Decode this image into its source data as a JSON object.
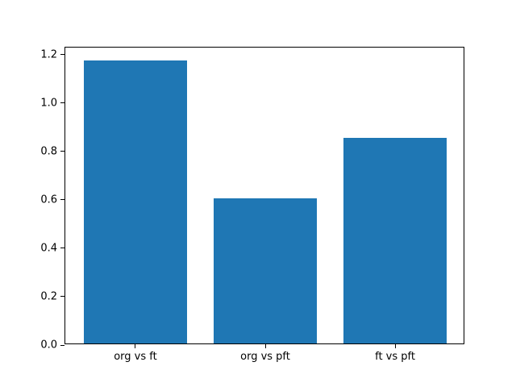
{
  "chart_data": {
    "type": "bar",
    "categories": [
      "org vs ft",
      "org vs pft",
      "ft vs pft"
    ],
    "values": [
      1.17,
      0.6,
      0.85
    ],
    "title": "",
    "xlabel": "",
    "ylabel": "",
    "ylim": [
      0,
      1.2285
    ],
    "yticks": [
      0.0,
      0.2,
      0.4,
      0.6,
      0.8,
      1.0,
      1.2
    ],
    "ytick_labels": [
      "0.0",
      "0.2",
      "0.4",
      "0.6",
      "0.8",
      "1.0",
      "1.2"
    ],
    "bar_color": "#1f77b4",
    "axes_background": "#ffffff",
    "figure_background": "#ffffff",
    "grid": false,
    "legend": null
  }
}
